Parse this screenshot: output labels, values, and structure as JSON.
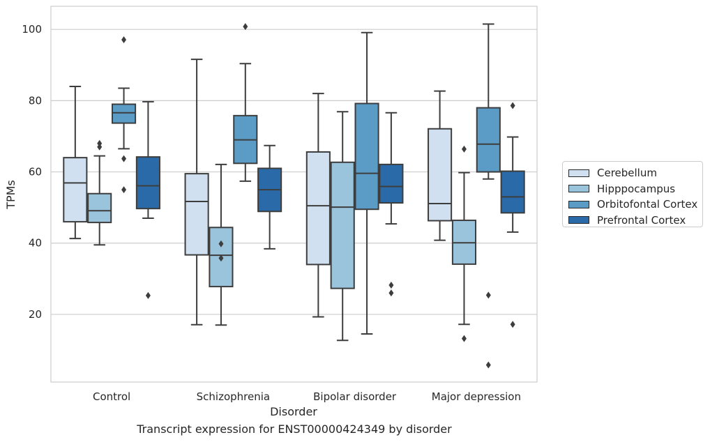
{
  "caption": "Transcript expression for ENST00000424349 by disorder",
  "chart_data": {
    "type": "box",
    "xlabel": "Disorder",
    "ylabel": "TPMs",
    "ylim": [
      1,
      106.5
    ],
    "yticks": [
      20,
      40,
      60,
      80,
      100
    ],
    "grid": "horizontal",
    "legend_position": "right",
    "categories": [
      "Control",
      "Schizophrenia",
      "Bipolar disorder",
      "Major depression"
    ],
    "series": [
      {
        "name": "Cerebellum",
        "color": "#d0e0f0",
        "boxes": [
          {
            "whisker_low": 41.3,
            "q1": 46.0,
            "median": 56.9,
            "q3": 64.0,
            "whisker_high": 84.0,
            "outliers": []
          },
          {
            "whisker_low": 17.1,
            "q1": 36.7,
            "median": 51.7,
            "q3": 59.5,
            "whisker_high": 91.6,
            "outliers": []
          },
          {
            "whisker_low": 19.3,
            "q1": 34.0,
            "median": 50.5,
            "q3": 65.6,
            "whisker_high": 82.0,
            "outliers": []
          },
          {
            "whisker_low": 40.8,
            "q1": 46.3,
            "median": 51.1,
            "q3": 72.1,
            "whisker_high": 82.7,
            "outliers": []
          }
        ]
      },
      {
        "name": "Hipppocampus",
        "color": "#9ac3dc",
        "boxes": [
          {
            "whisker_low": 39.5,
            "q1": 45.8,
            "median": 49.1,
            "q3": 53.9,
            "whisker_high": 64.5,
            "outliers": [
              67.0,
              68.0
            ]
          },
          {
            "whisker_low": 17.0,
            "q1": 27.8,
            "median": 36.6,
            "q3": 44.4,
            "whisker_high": 62.1,
            "outliers": [
              35.8,
              39.8
            ]
          },
          {
            "whisker_low": 12.7,
            "q1": 27.3,
            "median": 50.1,
            "q3": 62.7,
            "whisker_high": 76.9,
            "outliers": []
          },
          {
            "whisker_low": 17.2,
            "q1": 34.1,
            "median": 40.1,
            "q3": 46.4,
            "whisker_high": 59.8,
            "outliers": [
              13.2,
              66.4
            ]
          }
        ]
      },
      {
        "name": "Orbitofontal Cortex",
        "color": "#5a9cc6",
        "boxes": [
          {
            "whisker_low": 66.5,
            "q1": 73.7,
            "median": 76.6,
            "q3": 79.0,
            "whisker_high": 83.5,
            "outliers": [
              55.0,
              63.7,
              97.1
            ]
          },
          {
            "whisker_low": 57.4,
            "q1": 62.4,
            "median": 69.0,
            "q3": 75.8,
            "whisker_high": 90.4,
            "outliers": [
              100.8
            ]
          },
          {
            "whisker_low": 14.5,
            "q1": 49.5,
            "median": 59.6,
            "q3": 79.2,
            "whisker_high": 99.1,
            "outliers": []
          },
          {
            "whisker_low": 58.0,
            "q1": 60.0,
            "median": 67.8,
            "q3": 78.0,
            "whisker_high": 101.5,
            "outliers": [
              5.8,
              25.4
            ]
          }
        ]
      },
      {
        "name": "Prefrontal Cortex",
        "color": "#2b6aa8",
        "boxes": [
          {
            "whisker_low": 47.0,
            "q1": 49.7,
            "median": 56.1,
            "q3": 64.2,
            "whisker_high": 79.7,
            "outliers": [
              25.3
            ]
          },
          {
            "whisker_low": 38.4,
            "q1": 48.9,
            "median": 55.0,
            "q3": 61.0,
            "whisker_high": 67.4,
            "outliers": []
          },
          {
            "whisker_low": 45.4,
            "q1": 51.3,
            "median": 55.9,
            "q3": 62.1,
            "whisker_high": 76.6,
            "outliers": [
              26.0,
              28.2
            ]
          },
          {
            "whisker_low": 43.1,
            "q1": 48.5,
            "median": 53.0,
            "q3": 60.2,
            "whisker_high": 69.8,
            "outliers": [
              17.2,
              78.6
            ]
          }
        ]
      }
    ]
  }
}
